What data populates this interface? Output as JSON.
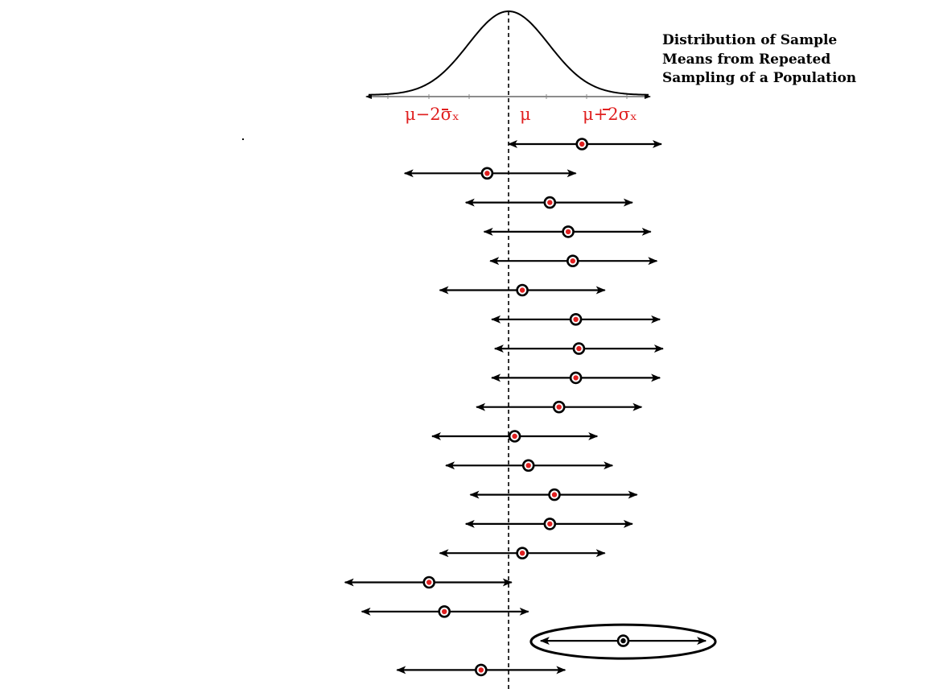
{
  "title": {
    "line1": "Distribution of Sample",
    "line2": "Means from Repeated",
    "line3": "Sampling of a Population"
  },
  "axis_labels": {
    "left": "μ−2σₓ",
    "center": "μ",
    "right": "μ+2σₓ"
  },
  "colors": {
    "label": "#e02020",
    "mean_dot": "#e02020",
    "line": "#000000"
  },
  "intervals": [
    {
      "mean": 0.48,
      "lower": 0.0,
      "upper": 1.0
    },
    {
      "mean": -0.14,
      "lower": -0.68,
      "upper": 0.44
    },
    {
      "mean": 0.27,
      "lower": -0.28,
      "upper": 0.81
    },
    {
      "mean": 0.39,
      "lower": -0.16,
      "upper": 0.93
    },
    {
      "mean": 0.42,
      "lower": -0.12,
      "upper": 0.97
    },
    {
      "mean": 0.09,
      "lower": -0.45,
      "upper": 0.63
    },
    {
      "mean": 0.44,
      "lower": -0.11,
      "upper": 0.99
    },
    {
      "mean": 0.46,
      "lower": -0.09,
      "upper": 1.01
    },
    {
      "mean": 0.44,
      "lower": -0.11,
      "upper": 0.99
    },
    {
      "mean": 0.33,
      "lower": -0.21,
      "upper": 0.87
    },
    {
      "mean": 0.04,
      "lower": -0.5,
      "upper": 0.58
    },
    {
      "mean": 0.13,
      "lower": -0.41,
      "upper": 0.68
    },
    {
      "mean": 0.3,
      "lower": -0.25,
      "upper": 0.84
    },
    {
      "mean": 0.27,
      "lower": -0.28,
      "upper": 0.81
    },
    {
      "mean": 0.09,
      "lower": -0.45,
      "upper": 0.63
    },
    {
      "mean": -0.52,
      "lower": -1.07,
      "upper": 0.02
    },
    {
      "mean": -0.42,
      "lower": -0.96,
      "upper": 0.13
    },
    {
      "mean": 0.75,
      "lower": 0.21,
      "upper": 1.29,
      "highlighted": true
    },
    {
      "mean": -0.18,
      "lower": -0.73,
      "upper": 0.37
    }
  ]
}
